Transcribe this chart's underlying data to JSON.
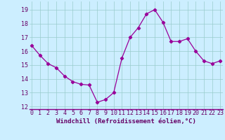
{
  "x": [
    0,
    1,
    2,
    3,
    4,
    5,
    6,
    7,
    8,
    9,
    10,
    11,
    12,
    13,
    14,
    15,
    16,
    17,
    18,
    19,
    20,
    21,
    22,
    23
  ],
  "y": [
    16.4,
    15.7,
    15.1,
    14.8,
    14.2,
    13.8,
    13.6,
    13.55,
    12.3,
    12.5,
    13.0,
    15.5,
    17.0,
    17.7,
    18.7,
    19.0,
    18.1,
    16.7,
    16.7,
    16.9,
    16.0,
    15.3,
    15.1,
    15.3
  ],
  "line_color": "#990099",
  "marker": "D",
  "marker_size": 2.2,
  "background_color": "#cceeff",
  "grid_color": "#99cccc",
  "xlabel": "Windchill (Refroidissement éolien,°C)",
  "xlabel_fontsize": 6.5,
  "tick_fontsize": 6.0,
  "ylim": [
    11.8,
    19.6
  ],
  "yticks": [
    12,
    13,
    14,
    15,
    16,
    17,
    18,
    19
  ],
  "xticks": [
    0,
    1,
    2,
    3,
    4,
    5,
    6,
    7,
    8,
    9,
    10,
    11,
    12,
    13,
    14,
    15,
    16,
    17,
    18,
    19,
    20,
    21,
    22,
    23
  ],
  "xlim": [
    -0.3,
    23.3
  ]
}
